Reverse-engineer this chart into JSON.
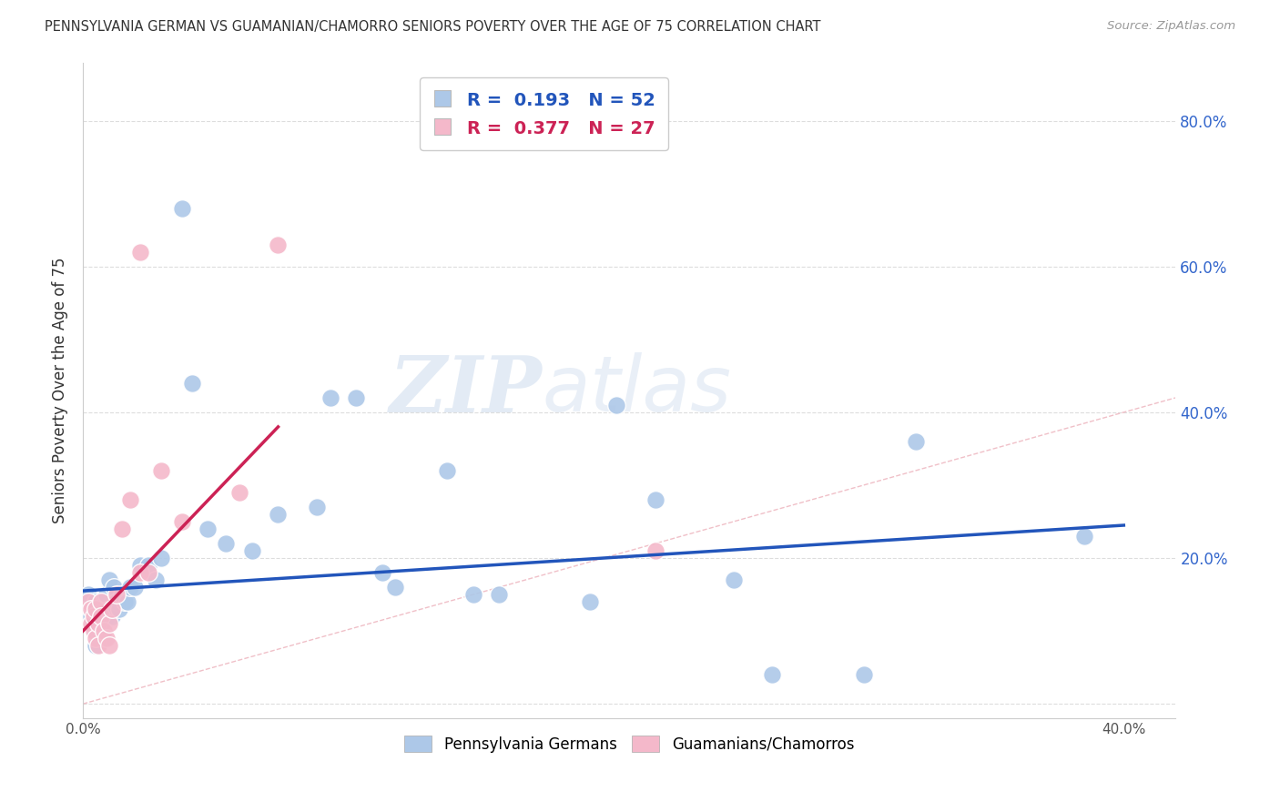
{
  "title": "PENNSYLVANIA GERMAN VS GUAMANIAN/CHAMORRO SENIORS POVERTY OVER THE AGE OF 75 CORRELATION CHART",
  "source": "Source: ZipAtlas.com",
  "ylabel": "Seniors Poverty Over the Age of 75",
  "xlim": [
    0.0,
    0.42
  ],
  "ylim": [
    -0.02,
    0.88
  ],
  "xticks": [
    0.0,
    0.1,
    0.2,
    0.3,
    0.4
  ],
  "yticks_right": [
    0.0,
    0.2,
    0.4,
    0.6,
    0.8
  ],
  "legend_blue_r": "0.193",
  "legend_blue_n": "52",
  "legend_pink_r": "0.377",
  "legend_pink_n": "27",
  "blue_color": "#adc8e8",
  "pink_color": "#f4b8ca",
  "blue_line_color": "#2255bb",
  "pink_line_color": "#cc2255",
  "diagonal_color": "#cccccc",
  "watermark_zip": "ZIP",
  "watermark_atlas": "atlas",
  "blue_scatter_x": [
    0.002,
    0.003,
    0.004,
    0.004,
    0.005,
    0.005,
    0.006,
    0.006,
    0.007,
    0.007,
    0.008,
    0.008,
    0.009,
    0.009,
    0.01,
    0.01,
    0.011,
    0.012,
    0.012,
    0.013,
    0.014,
    0.015,
    0.016,
    0.017,
    0.018,
    0.02,
    0.022,
    0.025,
    0.028,
    0.03,
    0.038,
    0.042,
    0.048,
    0.055,
    0.065,
    0.075,
    0.09,
    0.095,
    0.105,
    0.115,
    0.12,
    0.14,
    0.15,
    0.16,
    0.195,
    0.205,
    0.22,
    0.25,
    0.265,
    0.3,
    0.32,
    0.385
  ],
  "blue_scatter_y": [
    0.15,
    0.12,
    0.13,
    0.1,
    0.14,
    0.08,
    0.13,
    0.1,
    0.14,
    0.11,
    0.13,
    0.09,
    0.12,
    0.15,
    0.13,
    0.17,
    0.12,
    0.13,
    0.16,
    0.14,
    0.13,
    0.15,
    0.14,
    0.14,
    0.16,
    0.16,
    0.19,
    0.19,
    0.17,
    0.2,
    0.68,
    0.44,
    0.24,
    0.22,
    0.21,
    0.26,
    0.27,
    0.42,
    0.42,
    0.18,
    0.16,
    0.32,
    0.15,
    0.15,
    0.14,
    0.41,
    0.28,
    0.17,
    0.04,
    0.04,
    0.36,
    0.23
  ],
  "pink_scatter_x": [
    0.002,
    0.003,
    0.003,
    0.004,
    0.004,
    0.005,
    0.005,
    0.006,
    0.006,
    0.007,
    0.007,
    0.008,
    0.009,
    0.01,
    0.01,
    0.011,
    0.013,
    0.015,
    0.018,
    0.022,
    0.022,
    0.025,
    0.03,
    0.038,
    0.06,
    0.075,
    0.22
  ],
  "pink_scatter_y": [
    0.14,
    0.11,
    0.13,
    0.12,
    0.1,
    0.13,
    0.09,
    0.11,
    0.08,
    0.14,
    0.12,
    0.1,
    0.09,
    0.11,
    0.08,
    0.13,
    0.15,
    0.24,
    0.28,
    0.62,
    0.18,
    0.18,
    0.32,
    0.25,
    0.29,
    0.63,
    0.21
  ],
  "blue_line_x": [
    0.0,
    0.4
  ],
  "blue_line_y": [
    0.155,
    0.245
  ],
  "pink_line_x": [
    0.0,
    0.075
  ],
  "pink_line_y": [
    0.1,
    0.38
  ],
  "scatter_size": 200
}
